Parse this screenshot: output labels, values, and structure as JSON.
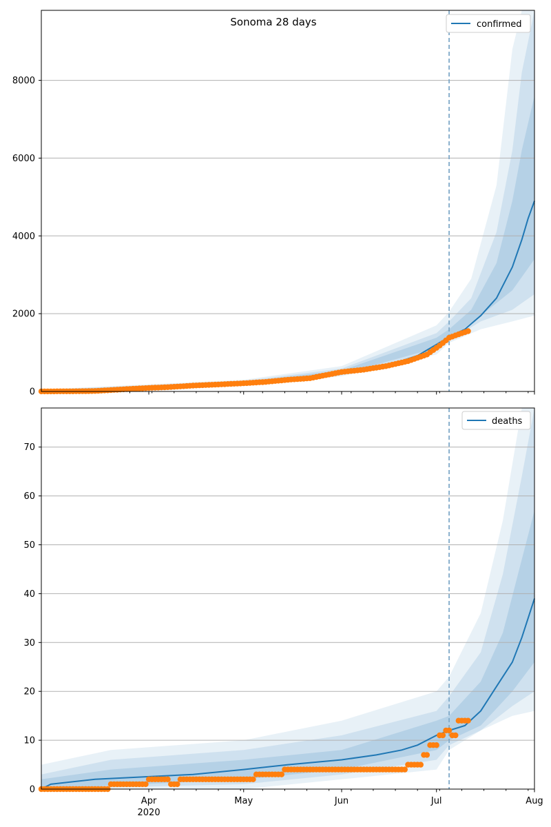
{
  "title": "Sonoma 28 days",
  "colors": {
    "model": "#1f77b4",
    "observed": "#ff7f0e",
    "grid": "#b0b0b0",
    "forecast_line": "#7fa9c8"
  },
  "x_axis": {
    "start": "2020-02-27",
    "end": "2020-08-01",
    "forecast_start": "2020-07-05",
    "tick_labels": [
      {
        "date": "2020-04-01",
        "label": "Apr",
        "sub": "2020"
      },
      {
        "date": "2020-05-01",
        "label": "May",
        "sub": ""
      },
      {
        "date": "2020-06-01",
        "label": "Jun",
        "sub": ""
      },
      {
        "date": "2020-07-01",
        "label": "Jul",
        "sub": ""
      },
      {
        "date": "2020-08-01",
        "label": "Aug",
        "sub": ""
      }
    ]
  },
  "chart_data": [
    {
      "type": "line",
      "title": "Sonoma 28 days",
      "legend": "confirmed",
      "legend_position": "top-right",
      "grid": "horizontal",
      "ylim": [
        0,
        9800
      ],
      "yticks": [
        0,
        2000,
        4000,
        6000,
        8000
      ],
      "model": [
        [
          "2020-02-27",
          10
        ],
        [
          "2020-03-10",
          20
        ],
        [
          "2020-03-20",
          45
        ],
        [
          "2020-04-01",
          90
        ],
        [
          "2020-04-15",
          150
        ],
        [
          "2020-05-01",
          210
        ],
        [
          "2020-05-15",
          300
        ],
        [
          "2020-06-01",
          480
        ],
        [
          "2020-06-15",
          660
        ],
        [
          "2020-06-25",
          920
        ],
        [
          "2020-07-05",
          1400
        ],
        [
          "2020-07-10",
          1600
        ],
        [
          "2020-07-15",
          1950
        ],
        [
          "2020-07-20",
          2400
        ],
        [
          "2020-07-25",
          3200
        ],
        [
          "2020-07-28",
          3900
        ],
        [
          "2020-07-30",
          4450
        ],
        [
          "2020-08-01",
          4900
        ]
      ],
      "bands": [
        {
          "lower": [
            [
              "2020-02-27",
              0
            ],
            [
              "2020-05-01",
              160
            ],
            [
              "2020-06-01",
              390
            ],
            [
              "2020-07-01",
              950
            ],
            [
              "2020-07-05",
              1250
            ],
            [
              "2020-07-15",
              1600
            ],
            [
              "2020-07-25",
              1800
            ],
            [
              "2020-08-01",
              1950
            ]
          ],
          "upper": [
            [
              "2020-02-27",
              50
            ],
            [
              "2020-05-01",
              300
            ],
            [
              "2020-06-01",
              650
            ],
            [
              "2020-07-01",
              1700
            ],
            [
              "2020-07-05",
              2050
            ],
            [
              "2020-07-12",
              2900
            ],
            [
              "2020-07-20",
              5300
            ],
            [
              "2020-07-25",
              8800
            ],
            [
              "2020-07-28",
              9800
            ],
            [
              "2020-08-01",
              9800
            ]
          ]
        },
        {
          "lower": [
            [
              "2020-02-27",
              0
            ],
            [
              "2020-05-01",
              175
            ],
            [
              "2020-06-01",
              420
            ],
            [
              "2020-07-01",
              1050
            ],
            [
              "2020-07-05",
              1300
            ],
            [
              "2020-07-15",
              1800
            ],
            [
              "2020-07-25",
              2100
            ],
            [
              "2020-08-01",
              2500
            ]
          ],
          "upper": [
            [
              "2020-02-27",
              40
            ],
            [
              "2020-05-01",
              270
            ],
            [
              "2020-06-01",
              590
            ],
            [
              "2020-07-01",
              1500
            ],
            [
              "2020-07-05",
              1800
            ],
            [
              "2020-07-12",
              2400
            ],
            [
              "2020-07-20",
              4100
            ],
            [
              "2020-07-25",
              6200
            ],
            [
              "2020-07-28",
              8200
            ],
            [
              "2020-08-01",
              9800
            ]
          ]
        },
        {
          "lower": [
            [
              "2020-02-27",
              0
            ],
            [
              "2020-05-01",
              190
            ],
            [
              "2020-06-01",
              445
            ],
            [
              "2020-07-01",
              1120
            ],
            [
              "2020-07-05",
              1340
            ],
            [
              "2020-07-15",
              1950
            ],
            [
              "2020-07-25",
              2600
            ],
            [
              "2020-08-01",
              3400
            ]
          ],
          "upper": [
            [
              "2020-02-27",
              30
            ],
            [
              "2020-05-01",
              245
            ],
            [
              "2020-06-01",
              540
            ],
            [
              "2020-07-01",
              1380
            ],
            [
              "2020-07-05",
              1600
            ],
            [
              "2020-07-12",
              2100
            ],
            [
              "2020-07-20",
              3300
            ],
            [
              "2020-07-25",
              4900
            ],
            [
              "2020-07-28",
              6200
            ],
            [
              "2020-08-01",
              7600
            ]
          ]
        }
      ],
      "observed": [
        [
          "2020-02-27",
          2
        ],
        [
          "2020-03-05",
          3
        ],
        [
          "2020-03-10",
          5
        ],
        [
          "2020-03-15",
          12
        ],
        [
          "2020-03-20",
          35
        ],
        [
          "2020-03-25",
          60
        ],
        [
          "2020-04-01",
          90
        ],
        [
          "2020-04-07",
          110
        ],
        [
          "2020-04-15",
          150
        ],
        [
          "2020-04-22",
          175
        ],
        [
          "2020-05-01",
          210
        ],
        [
          "2020-05-08",
          245
        ],
        [
          "2020-05-15",
          300
        ],
        [
          "2020-05-22",
          340
        ],
        [
          "2020-06-01",
          500
        ],
        [
          "2020-06-08",
          560
        ],
        [
          "2020-06-15",
          650
        ],
        [
          "2020-06-22",
          780
        ],
        [
          "2020-06-28",
          950
        ],
        [
          "2020-07-02",
          1180
        ],
        [
          "2020-07-05",
          1380
        ],
        [
          "2020-07-08",
          1470
        ],
        [
          "2020-07-11",
          1550
        ]
      ]
    },
    {
      "type": "line",
      "legend": "deaths",
      "legend_position": "top-right",
      "grid": "horizontal",
      "ylim": [
        0,
        78
      ],
      "yticks": [
        0,
        10,
        20,
        30,
        40,
        50,
        60,
        70
      ],
      "model": [
        [
          "2020-02-27",
          0
        ],
        [
          "2020-03-01",
          1
        ],
        [
          "2020-03-15",
          2
        ],
        [
          "2020-04-15",
          3
        ],
        [
          "2020-05-01",
          4
        ],
        [
          "2020-05-15",
          5
        ],
        [
          "2020-06-01",
          6
        ],
        [
          "2020-06-12",
          7
        ],
        [
          "2020-06-20",
          8
        ],
        [
          "2020-06-25",
          9
        ],
        [
          "2020-07-01",
          11
        ],
        [
          "2020-07-05",
          12
        ],
        [
          "2020-07-10",
          13
        ],
        [
          "2020-07-15",
          16
        ],
        [
          "2020-07-20",
          21
        ],
        [
          "2020-07-25",
          26
        ],
        [
          "2020-07-28",
          31
        ],
        [
          "2020-07-30",
          35
        ],
        [
          "2020-08-01",
          39
        ]
      ],
      "bands": [
        {
          "lower": [
            [
              "2020-02-27",
              0
            ],
            [
              "2020-05-01",
              0
            ],
            [
              "2020-06-01",
              2
            ],
            [
              "2020-07-01",
              4
            ],
            [
              "2020-07-05",
              8
            ],
            [
              "2020-07-15",
              12
            ],
            [
              "2020-07-25",
              15
            ],
            [
              "2020-08-01",
              16
            ]
          ],
          "upper": [
            [
              "2020-02-27",
              5
            ],
            [
              "2020-03-20",
              8
            ],
            [
              "2020-05-01",
              10
            ],
            [
              "2020-06-01",
              14
            ],
            [
              "2020-07-01",
              20
            ],
            [
              "2020-07-05",
              23
            ],
            [
              "2020-07-15",
              36
            ],
            [
              "2020-07-22",
              55
            ],
            [
              "2020-07-28",
              78
            ],
            [
              "2020-08-01",
              78
            ]
          ]
        },
        {
          "lower": [
            [
              "2020-02-27",
              0
            ],
            [
              "2020-05-01",
              1
            ],
            [
              "2020-06-01",
              3
            ],
            [
              "2020-07-01",
              6
            ],
            [
              "2020-07-05",
              9
            ],
            [
              "2020-07-15",
              12
            ],
            [
              "2020-07-25",
              17
            ],
            [
              "2020-08-01",
              20
            ]
          ],
          "upper": [
            [
              "2020-02-27",
              3
            ],
            [
              "2020-03-20",
              6
            ],
            [
              "2020-05-01",
              8
            ],
            [
              "2020-06-01",
              11
            ],
            [
              "2020-07-01",
              16
            ],
            [
              "2020-07-05",
              19
            ],
            [
              "2020-07-15",
              28
            ],
            [
              "2020-07-22",
              44
            ],
            [
              "2020-07-28",
              64
            ],
            [
              "2020-08-01",
              78
            ]
          ]
        },
        {
          "lower": [
            [
              "2020-02-27",
              0
            ],
            [
              "2020-05-01",
              2
            ],
            [
              "2020-06-01",
              4
            ],
            [
              "2020-07-01",
              8
            ],
            [
              "2020-07-05",
              10
            ],
            [
              "2020-07-15",
              13
            ],
            [
              "2020-07-25",
              20
            ],
            [
              "2020-08-01",
              26
            ]
          ],
          "upper": [
            [
              "2020-02-27",
              2
            ],
            [
              "2020-03-20",
              4
            ],
            [
              "2020-05-01",
              6
            ],
            [
              "2020-06-01",
              8
            ],
            [
              "2020-07-01",
              14
            ],
            [
              "2020-07-05",
              15
            ],
            [
              "2020-07-15",
              22
            ],
            [
              "2020-07-22",
              32
            ],
            [
              "2020-07-28",
              47
            ],
            [
              "2020-08-01",
              57
            ]
          ]
        }
      ],
      "observed": [
        [
          "2020-02-27",
          0
        ],
        [
          "2020-03-20",
          1
        ],
        [
          "2020-04-01",
          2
        ],
        [
          "2020-04-08",
          1
        ],
        [
          "2020-04-11",
          2
        ],
        [
          "2020-05-05",
          3
        ],
        [
          "2020-05-14",
          4
        ],
        [
          "2020-06-14",
          4
        ],
        [
          "2020-06-22",
          5
        ],
        [
          "2020-06-27",
          7
        ],
        [
          "2020-06-29",
          9
        ],
        [
          "2020-07-02",
          11
        ],
        [
          "2020-07-04",
          12
        ],
        [
          "2020-07-06",
          11
        ],
        [
          "2020-07-08",
          14
        ],
        [
          "2020-07-11",
          14
        ]
      ]
    }
  ]
}
